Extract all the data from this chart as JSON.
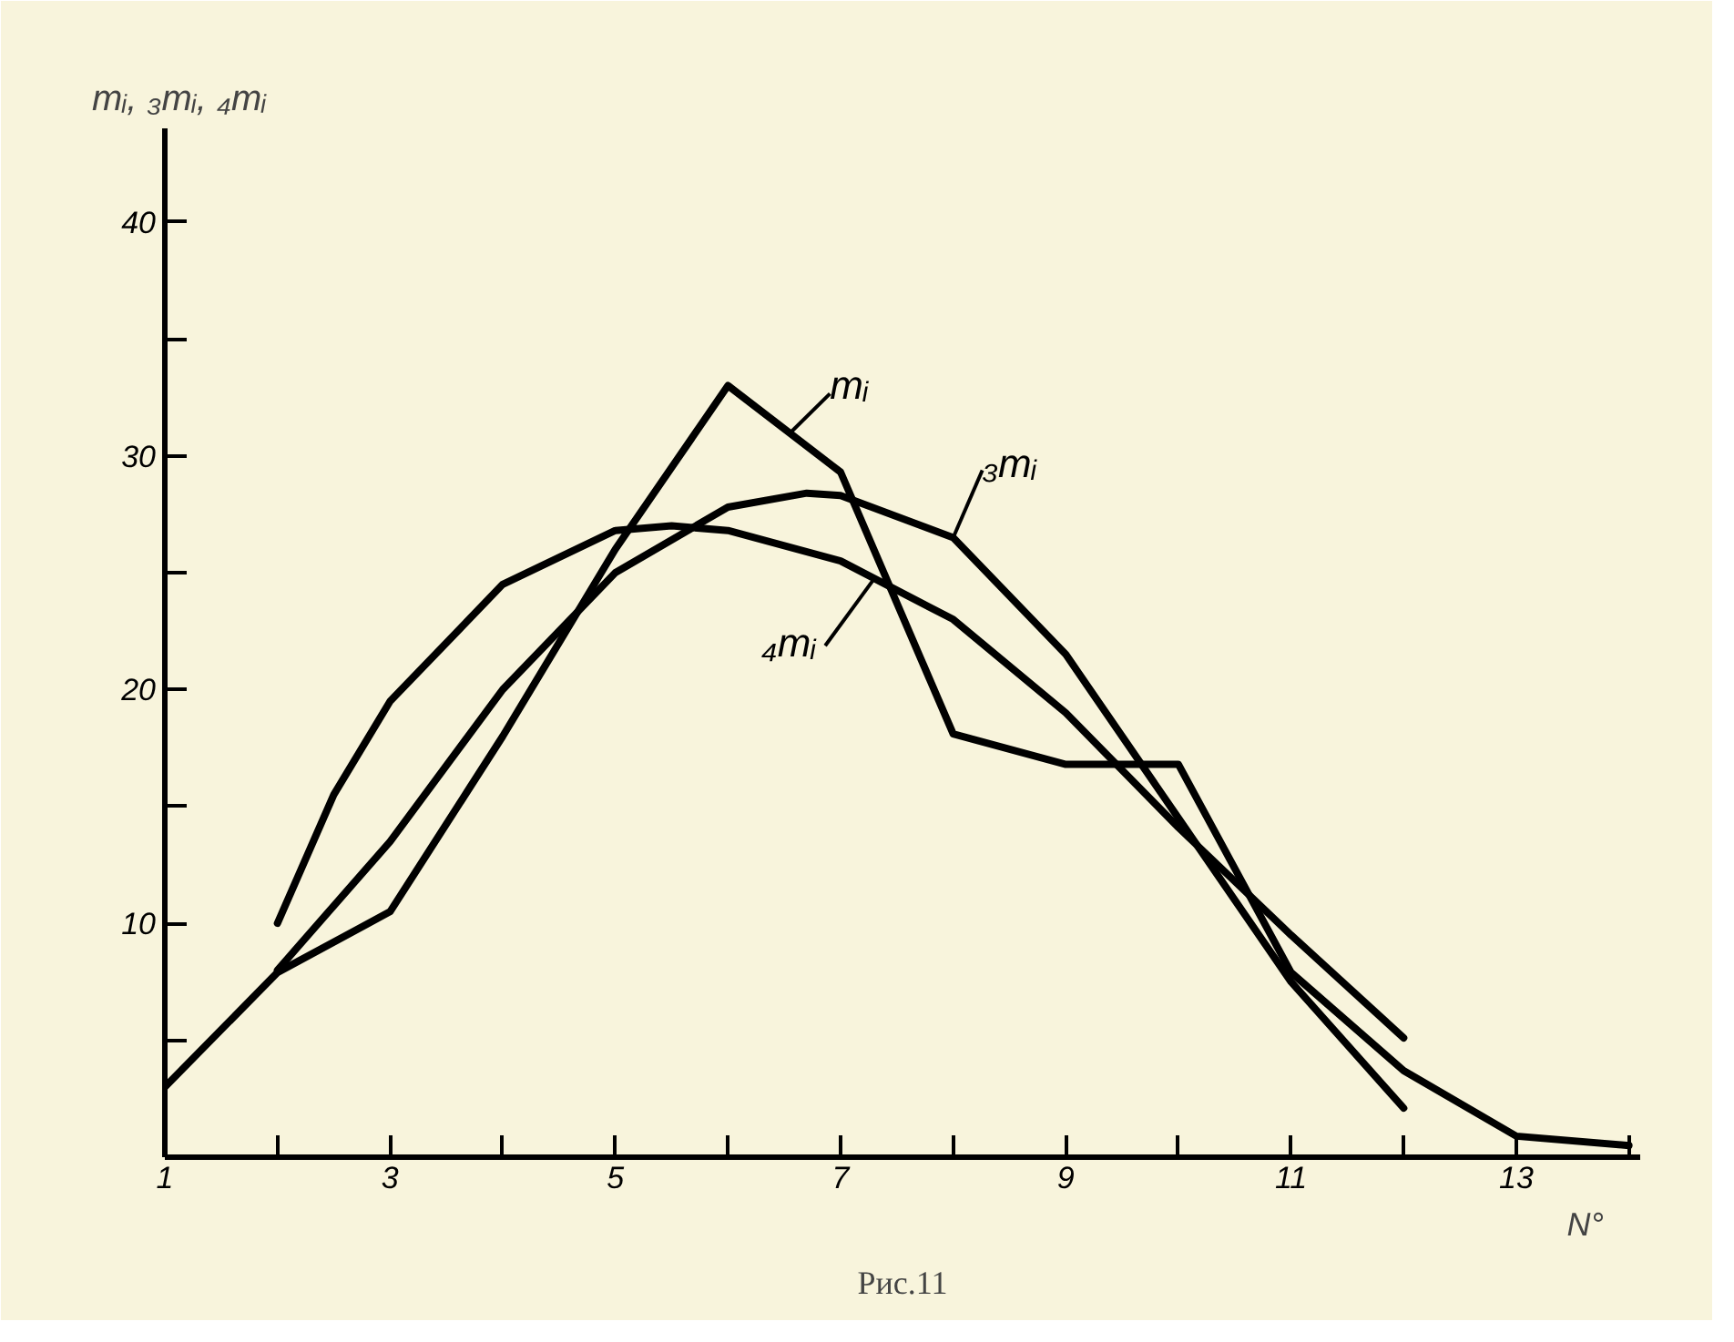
{
  "chart_data": {
    "type": "line",
    "ylabel": "mᵢ, ₃mᵢ, ₄mᵢ",
    "xlabel": "N°",
    "annotations": [
      "Рис.11"
    ],
    "xlim": [
      1,
      14.1
    ],
    "ylim": [
      0,
      44
    ],
    "xticks": [
      1,
      {
        "value": 2,
        "label": null
      },
      3,
      {
        "value": 4,
        "label": null
      },
      5,
      {
        "value": 6,
        "label": null
      },
      7,
      {
        "value": 8,
        "label": null
      },
      9,
      {
        "value": 10,
        "label": null
      },
      11,
      {
        "value": 12,
        "label": null
      },
      13,
      {
        "value": 14,
        "label": null
      }
    ],
    "yticks": [
      {
        "value": 5,
        "label": null
      },
      10,
      {
        "value": 15,
        "label": null
      },
      20,
      {
        "value": 25,
        "label": null
      },
      30,
      {
        "value": 35,
        "label": null
      },
      40
    ],
    "grid": false,
    "marker": "none",
    "line_style": "solid",
    "series": [
      {
        "name": "mᵢ",
        "color": "#000000",
        "x": [
          1,
          2,
          3,
          4,
          5,
          6,
          7,
          8,
          9,
          10,
          11,
          12,
          13,
          14
        ],
        "values": [
          3.0,
          7.9,
          10.5,
          18,
          26,
          33.0,
          29.3,
          18.1,
          16.8,
          16.8,
          7.9,
          3.7,
          0.9,
          0.5
        ]
      },
      {
        "name": "₃mᵢ",
        "color": "#000000",
        "x": [
          2,
          3,
          4,
          5,
          6,
          6.7,
          7,
          8,
          9,
          10,
          11,
          12
        ],
        "values": [
          8,
          13.5,
          20,
          25,
          27.8,
          28.4,
          28.3,
          26.5,
          21.5,
          14.5,
          7.5,
          2.1
        ]
      },
      {
        "name": "₄mᵢ",
        "color": "#000000",
        "x": [
          2,
          2.5,
          3,
          4,
          5,
          5.5,
          6,
          7,
          8,
          9,
          10,
          11,
          12
        ],
        "values": [
          10,
          15.5,
          19.5,
          24.5,
          26.8,
          27,
          26.8,
          25.5,
          23,
          19,
          14.1,
          9.5,
          5.1
        ]
      }
    ]
  }
}
